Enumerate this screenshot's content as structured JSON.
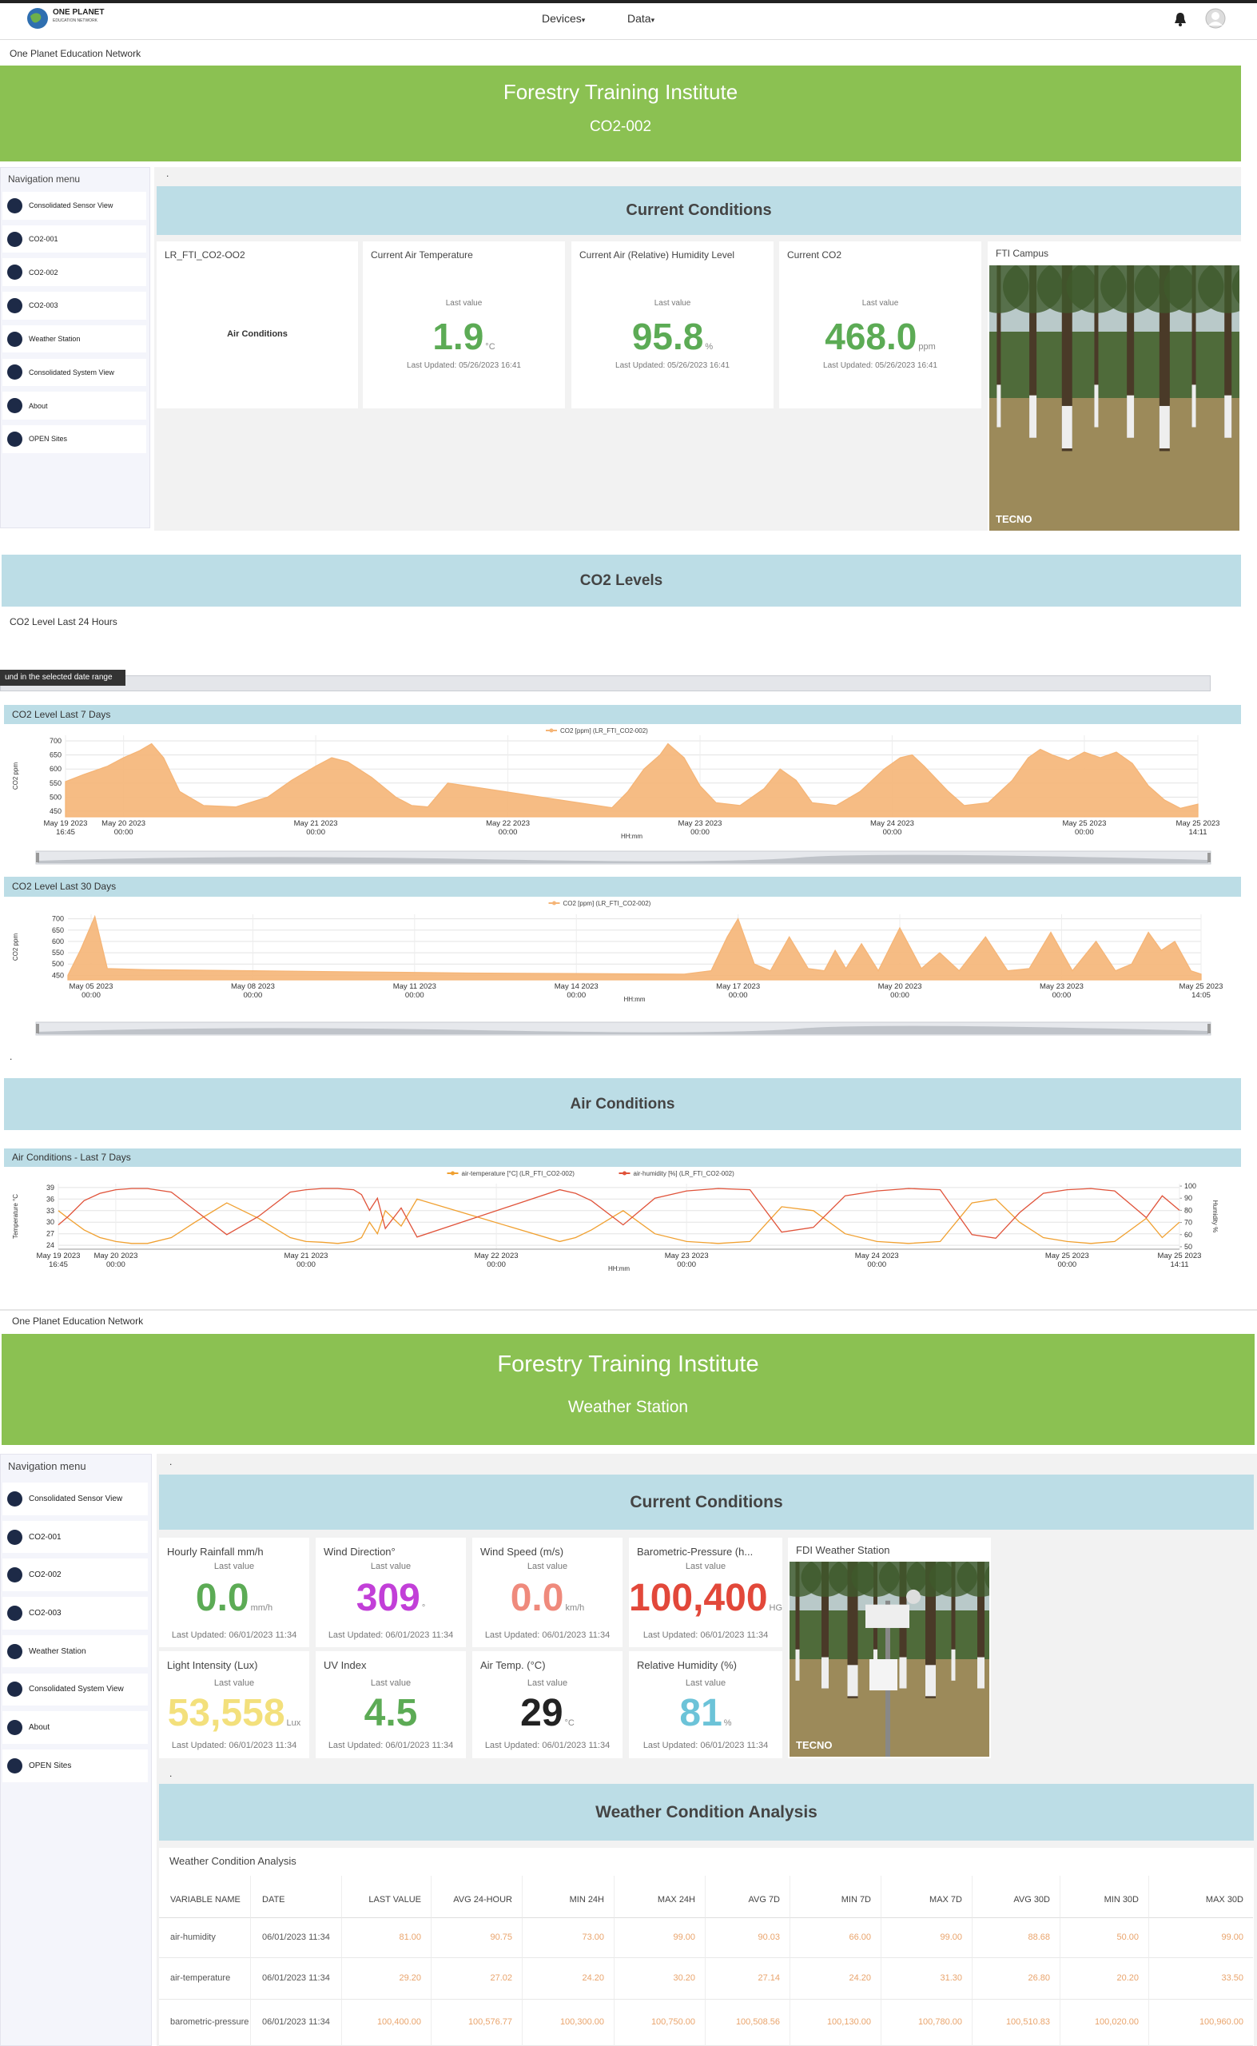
{
  "nav": {
    "brand": "ONE PLANET",
    "brand_sub": "EDUCATION NETWORK",
    "menus": [
      "Devices",
      "Data"
    ]
  },
  "page1": {
    "network": "One Planet Education Network",
    "banner": {
      "title": "Forestry Training Institute",
      "subtitle": "CO2-002"
    },
    "sidebar": {
      "title": "Navigation menu",
      "items": [
        "Consolidated Sensor View",
        "CO2-001",
        "CO2-002",
        "CO2-003",
        "Weather Station",
        "Consolidated System View",
        "About",
        "OPEN Sites"
      ]
    },
    "dot": ".",
    "current": {
      "heading": "Current Conditions",
      "device_card": {
        "title": "LR_FTI_CO2-OO2",
        "label": "Air Conditions"
      },
      "cards": [
        {
          "title": "Current Air Temperature",
          "caption": "Last value",
          "value": "1.9",
          "unit": "°C",
          "updated": "Last Updated: 05/26/2023 16:41",
          "color": "#5cab55"
        },
        {
          "title": "Current Air (Relative) Humidity Level",
          "caption": "Last value",
          "value": "95.8",
          "unit": "%",
          "updated": "Last Updated: 05/26/2023 16:41",
          "color": "#5cab55"
        },
        {
          "title": "Current CO2",
          "caption": "Last value",
          "value": "468.0",
          "unit": "ppm",
          "updated": "Last Updated: 05/26/2023 16:41",
          "color": "#5cab55"
        }
      ],
      "image_card": {
        "title": "FTI Campus",
        "watermark": "TECNO"
      }
    },
    "co2": {
      "heading": "CO2 Levels",
      "last24": "CO2 Level Last 24 Hours",
      "tooltip": "und in the selected date range",
      "panel7": "CO2 Level Last 7 Days",
      "panel30": "CO2 Level Last 30 Days"
    },
    "dot2": ".",
    "air": {
      "heading": "Air Conditions",
      "panel": "Air Conditions - Last 7 Days"
    }
  },
  "page2": {
    "network": "One Planet Education Network",
    "banner": {
      "title": "Forestry Training Institute",
      "subtitle": "Weather Station"
    },
    "sidebar": {
      "title": "Navigation menu",
      "items": [
        "Consolidated Sensor View",
        "CO2-001",
        "CO2-002",
        "CO2-003",
        "Weather Station",
        "Consolidated System View",
        "About",
        "OPEN Sites"
      ]
    },
    "dot": ".",
    "current": {
      "heading": "Current Conditions",
      "cards": [
        {
          "title": "Hourly Rainfall mm/h",
          "caption": "Last value",
          "value": "0.0",
          "unit": "mm/h",
          "updated": "Last Updated: 06/01/2023 11:34",
          "color": "#5cab55"
        },
        {
          "title": "Wind Direction°",
          "caption": "Last value",
          "value": "309",
          "unit": "°",
          "updated": "Last Updated: 06/01/2023 11:34",
          "color": "#c23fd8"
        },
        {
          "title": "Wind Speed (m/s)",
          "caption": "Last value",
          "value": "0.0",
          "unit": "km/h",
          "updated": "Last Updated: 06/01/2023 11:34",
          "color": "#ef8a7c"
        },
        {
          "title": "Barometric-Pressure (h...",
          "caption": "Last value",
          "value": "100,400",
          "unit": "HG",
          "updated": "Last Updated: 06/01/2023 11:34",
          "color": "#e2483a"
        },
        {
          "title": "Light Intensity (Lux)",
          "caption": "Last value",
          "value": "53,558",
          "unit": "Lux",
          "updated": "Last Updated: 06/01/2023 11:34",
          "color": "#f3e07c"
        },
        {
          "title": "UV Index",
          "caption": "Last value",
          "value": "4.5",
          "updated": "Last Updated: 06/01/2023 11:34",
          "color": "#5cab55"
        },
        {
          "title": "Air Temp. (°C)",
          "caption": "Last value",
          "value": "29",
          "unit": "°C",
          "updated": "Last Updated: 06/01/2023 11:34",
          "color": "#222222"
        },
        {
          "title": "Relative Humidity (%)",
          "caption": "Last value",
          "value": "81",
          "unit": "%",
          "updated": "Last Updated: 06/01/2023 11:34",
          "color": "#6cc3d8"
        }
      ],
      "image_card": {
        "title": "FDI Weather Station",
        "watermark": "TECNO"
      }
    },
    "dot2": ".",
    "analysis": {
      "heading": "Weather Condition Analysis",
      "title": "Weather Condition Analysis",
      "columns": [
        "VARIABLE NAME",
        "DATE",
        "LAST VALUE",
        "AVG 24-HOUR",
        "MIN 24H",
        "MAX 24H",
        "AVG 7D",
        "MIN 7D",
        "MAX 7D",
        "AVG 30D",
        "MIN 30D",
        "MAX 30D"
      ],
      "rows": [
        [
          "air-humidity",
          "06/01/2023 11:34",
          "81.00",
          "90.75",
          "73.00",
          "99.00",
          "90.03",
          "66.00",
          "99.00",
          "88.68",
          "50.00",
          "99.00"
        ],
        [
          "air-temperature",
          "06/01/2023 11:34",
          "29.20",
          "27.02",
          "24.20",
          "30.20",
          "27.14",
          "24.20",
          "31.30",
          "26.80",
          "20.20",
          "33.50"
        ],
        [
          "barometric-pressure",
          "06/01/2023 11:34",
          "100,400.00",
          "100,576.77",
          "100,300.00",
          "100,750.00",
          "100,508.56",
          "100,130.00",
          "100,780.00",
          "100,510.83",
          "100,020.00",
          "100,960.00"
        ]
      ]
    }
  },
  "chart_data": [
    {
      "type": "area",
      "legend_position": "top",
      "grid": true,
      "ylabel": "CO2 ppm",
      "xlabel": "HH:mm",
      "x": [
        16.75,
        19,
        22,
        24,
        26,
        27.5,
        29,
        31,
        34,
        38,
        42,
        45,
        48,
        50,
        52,
        55,
        58,
        60,
        62,
        64.5,
        75,
        85,
        87,
        89,
        91,
        92,
        94,
        96,
        98,
        101,
        104,
        106,
        108,
        110,
        113,
        116,
        119,
        121,
        122.5,
        124,
        127,
        129,
        132,
        135,
        137,
        138.5,
        140,
        142,
        144,
        146,
        148,
        150,
        152,
        154,
        156,
        158.18
      ],
      "series": [
        {
          "name": "CO2 [ppm] (LR_FTI_CO2-002)",
          "color": "#f5b577",
          "values": [
            555,
            580,
            610,
            640,
            665,
            690,
            640,
            520,
            470,
            465,
            500,
            560,
            610,
            640,
            625,
            570,
            500,
            470,
            465,
            550,
            505,
            462,
            520,
            600,
            650,
            690,
            640,
            540,
            480,
            470,
            530,
            600,
            560,
            480,
            470,
            520,
            600,
            640,
            650,
            610,
            520,
            470,
            480,
            560,
            640,
            670,
            650,
            630,
            660,
            640,
            660,
            620,
            540,
            490,
            460,
            475
          ]
        }
      ],
      "xlim": [
        16.75,
        158.18
      ],
      "xticks": [
        {
          "value": 16.75,
          "label": "May 19 2023 16:45"
        },
        {
          "value": 24,
          "label": "May 20 2023 00:00"
        },
        {
          "value": 48,
          "label": "May 21 2023 00:00"
        },
        {
          "value": 72,
          "label": "May 22 2023 00:00"
        },
        {
          "value": 96,
          "label": "May 23 2023 00:00"
        },
        {
          "value": 120,
          "label": "May 24 2023 00:00"
        },
        {
          "value": 144,
          "label": "May 25 2023 00:00"
        },
        {
          "value": 158.18,
          "label": "May 25 2023 14:11"
        }
      ],
      "ylim": [
        430,
        720
      ],
      "yticks": [
        450,
        500,
        550,
        600,
        650,
        700
      ]
    },
    {
      "type": "area",
      "legend_position": "top",
      "grid": true,
      "ylabel": "CO2 ppm",
      "xlabel": "HH:mm",
      "x": [
        -0.43,
        -0.2,
        0.07,
        0.3,
        1,
        3,
        5,
        7,
        9,
        11,
        11.5,
        11.8,
        12,
        12.3,
        12.6,
        12.95,
        13.3,
        13.6,
        13.8,
        14.0,
        14.29,
        14.6,
        15.0,
        15.4,
        15.74,
        16.1,
        16.59,
        17.0,
        17.4,
        17.8,
        18.2,
        18.64,
        19.0,
        19.3,
        19.61,
        19.85,
        20.1,
        20.4,
        20.587
      ],
      "series": [
        {
          "name": "CO2 [ppm] (LR_FTI_CO2-002)",
          "color": "#f5b577",
          "values": [
            450,
            560,
            710,
            480,
            475,
            470,
            465,
            460,
            458,
            455,
            470,
            620,
            700,
            500,
            470,
            620,
            480,
            470,
            560,
            480,
            590,
            470,
            660,
            480,
            550,
            470,
            620,
            470,
            480,
            640,
            470,
            600,
            470,
            500,
            640,
            560,
            600,
            470,
            455
          ]
        }
      ],
      "xlim": [
        -0.43,
        20.587
      ],
      "xticks": [
        {
          "value": 0,
          "label": "May 05 2023 00:00"
        },
        {
          "value": 3,
          "label": "May 08 2023 00:00"
        },
        {
          "value": 6,
          "label": "May 11 2023 00:00"
        },
        {
          "value": 9,
          "label": "May 14 2023 00:00"
        },
        {
          "value": 12,
          "label": "May 17 2023 00:00"
        },
        {
          "value": 15,
          "label": "May 20 2023 00:00"
        },
        {
          "value": 18,
          "label": "May 23 2023 00:00"
        },
        {
          "value": 20.587,
          "label": "May 25 2023 14:05"
        }
      ],
      "ylim": [
        430,
        720
      ],
      "yticks": [
        450,
        500,
        550,
        600,
        650,
        700
      ]
    },
    {
      "type": "line",
      "legend_position": "top",
      "grid": true,
      "ylabel": "Temperature °C",
      "y2label": "Humidity %",
      "xlabel": "HH:mm",
      "x": [
        16.75,
        18,
        20,
        22,
        24,
        26,
        28,
        31,
        34,
        38,
        42,
        46,
        48,
        50,
        52,
        54,
        55,
        56,
        57,
        58,
        60,
        62,
        80,
        82,
        84,
        88,
        92,
        96,
        100,
        104,
        108,
        112,
        116,
        120,
        124,
        128,
        132,
        135,
        138,
        141,
        144,
        147,
        150,
        152,
        154,
        156,
        158.18
      ],
      "series": [
        {
          "name": "air-temperature [°C] (LR_FTI_CO2-002)",
          "color": "#f0a030",
          "values": [
            33,
            31,
            28,
            26,
            25,
            24.5,
            24.5,
            26,
            30,
            35,
            31,
            26,
            25,
            24.8,
            24.5,
            25,
            26,
            30,
            27,
            33,
            29,
            36,
            25,
            26,
            28,
            33,
            27,
            25,
            24.5,
            25,
            34,
            33,
            27,
            25,
            24.5,
            25,
            35,
            36,
            30,
            26,
            25,
            24.5,
            25,
            28,
            31,
            26,
            30
          ]
        },
        {
          "name": "air-humidity [%] (LR_FTI_CO2-002)",
          "color": "#e0533a",
          "axis": "y2",
          "values": [
            68,
            75,
            88,
            94,
            97,
            98,
            98,
            95,
            80,
            60,
            75,
            95,
            97,
            98,
            98,
            97,
            93,
            80,
            90,
            65,
            82,
            58,
            97,
            94,
            88,
            68,
            90,
            96,
            98,
            97,
            62,
            66,
            92,
            96,
            98,
            97,
            60,
            57,
            78,
            94,
            97,
            98,
            96,
            85,
            74,
            92,
            80
          ]
        }
      ],
      "xlim": [
        16.75,
        158.18
      ],
      "xticks": [
        {
          "value": 16.75,
          "label": "May 19 2023 16:45"
        },
        {
          "value": 24,
          "label": "May 20 2023 00:00"
        },
        {
          "value": 48,
          "label": "May 21 2023 00:00"
        },
        {
          "value": 72,
          "label": "May 22 2023 00:00"
        },
        {
          "value": 96,
          "label": "May 23 2023 00:00"
        },
        {
          "value": 120,
          "label": "May 24 2023 00:00"
        },
        {
          "value": 144,
          "label": "May 25 2023 00:00"
        },
        {
          "value": 158.18,
          "label": "May 25 2023 14:11"
        }
      ],
      "ylim": [
        23,
        40
      ],
      "yticks": [
        24,
        27,
        30,
        33,
        36,
        39
      ],
      "y2lim": [
        48,
        102
      ],
      "y2ticks": [
        50,
        60,
        70,
        80,
        90,
        100
      ]
    }
  ]
}
